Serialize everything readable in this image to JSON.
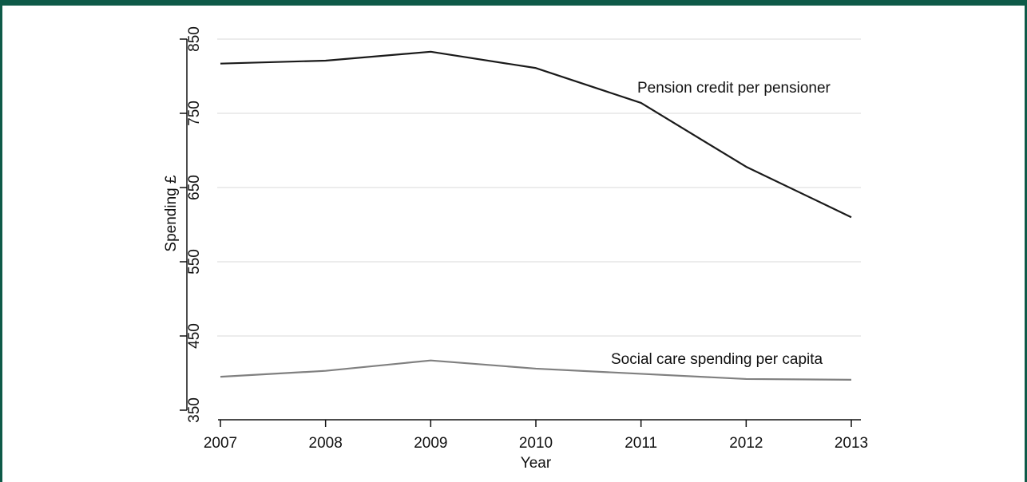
{
  "chart_data": {
    "type": "line",
    "xlabel": "Year",
    "ylabel": "Spending £",
    "x": [
      2007,
      2008,
      2009,
      2010,
      2011,
      2012,
      2013
    ],
    "xlim": [
      2007,
      2013
    ],
    "ylim": [
      350,
      850
    ],
    "yticks": [
      350,
      450,
      550,
      650,
      750,
      850
    ],
    "grid": true,
    "series": [
      {
        "name": "Pension credit per pensioner",
        "color": "#1a1a1a",
        "values": [
          817,
          821,
          833,
          811,
          764,
          678,
          610
        ]
      },
      {
        "name": "Social care spending per capita",
        "color": "#808080",
        "values": [
          395,
          403,
          417,
          406,
          399,
          392,
          391
        ]
      }
    ]
  },
  "frame_color": "#0e5a48"
}
